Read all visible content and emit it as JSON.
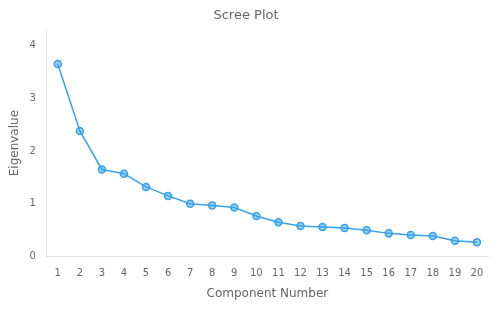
{
  "chart_data": {
    "type": "line",
    "title": "Scree Plot",
    "xlabel": "Component Number",
    "ylabel": "Eigenvalue",
    "x": [
      1,
      2,
      3,
      4,
      5,
      6,
      7,
      8,
      9,
      10,
      11,
      12,
      13,
      14,
      15,
      16,
      17,
      18,
      19,
      20
    ],
    "values": [
      3.65,
      2.38,
      1.65,
      1.57,
      1.32,
      1.15,
      1.0,
      0.97,
      0.93,
      0.77,
      0.65,
      0.58,
      0.56,
      0.54,
      0.5,
      0.44,
      0.41,
      0.39,
      0.3,
      0.27
    ],
    "xlim": [
      0.5,
      20.5
    ],
    "ylim": [
      0,
      4.3
    ],
    "xticks": [
      1,
      2,
      3,
      4,
      5,
      6,
      7,
      8,
      9,
      10,
      11,
      12,
      13,
      14,
      15,
      16,
      17,
      18,
      19,
      20
    ],
    "yticks": [
      0,
      1,
      2,
      3,
      4
    ],
    "marker": "circle",
    "grid": false
  }
}
